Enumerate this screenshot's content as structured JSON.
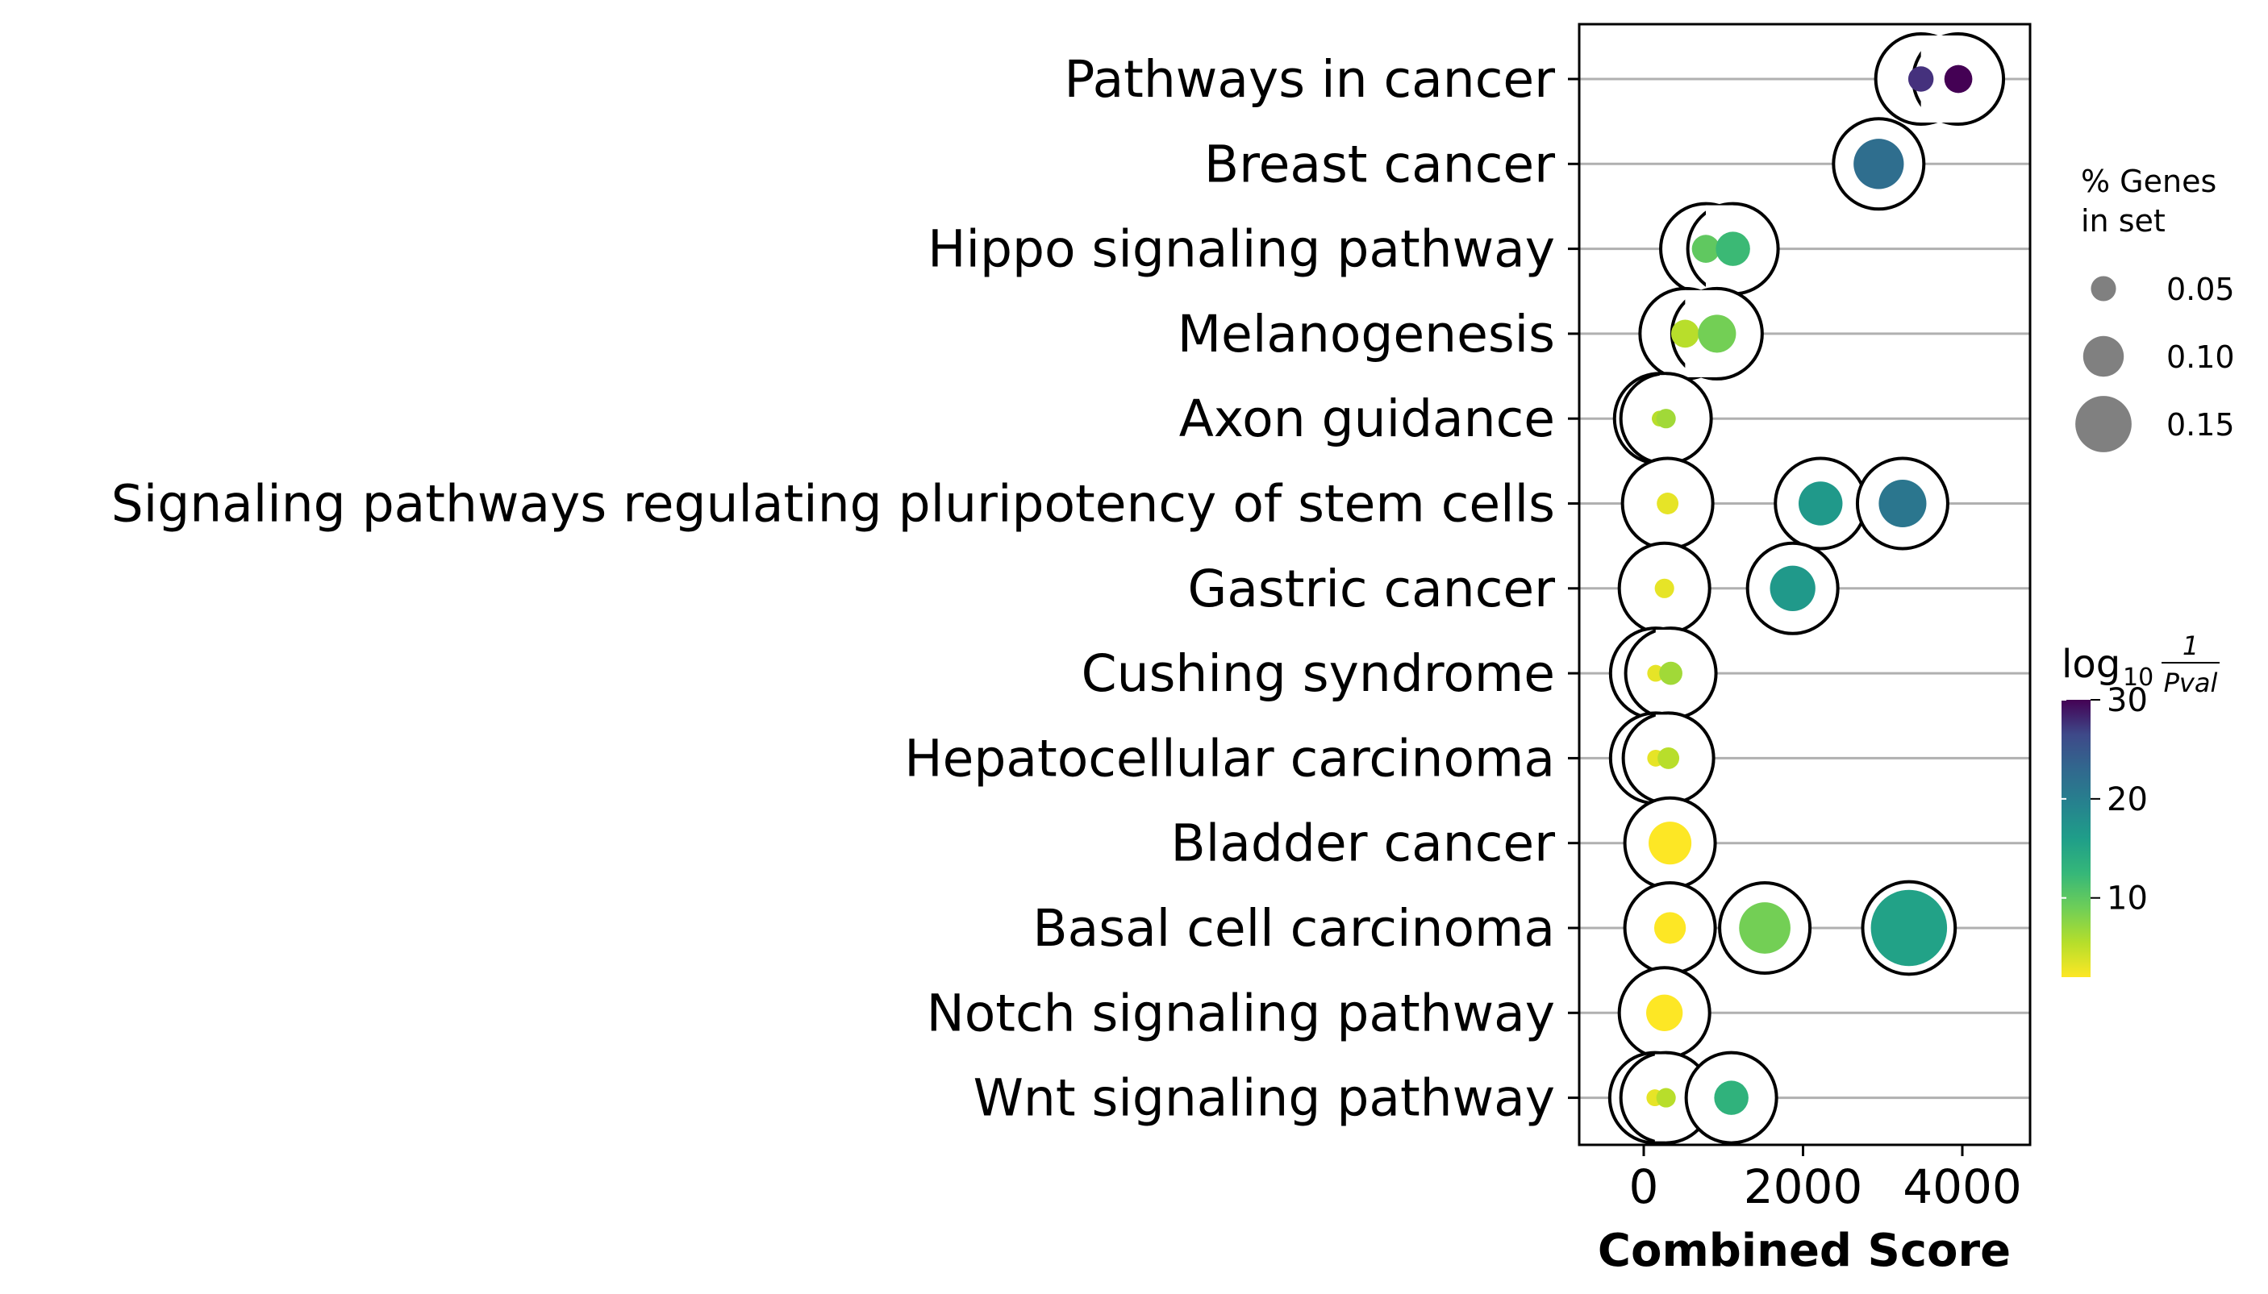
{
  "chart_data": {
    "type": "scatter",
    "xlabel": "Combined Score",
    "xlim": [
      -800,
      4900
    ],
    "xticks": [
      0,
      2000,
      4000
    ],
    "xtick_labels": [
      "0",
      "2000",
      "4000"
    ],
    "grid": "horizontal",
    "categories": [
      "Pathways in cancer",
      "Breast cancer",
      "Hippo signaling pathway",
      "Melanogenesis",
      "Axon guidance",
      "Signaling pathways regulating pluripotency of stem cells",
      "Gastric cancer",
      "Cushing syndrome",
      "Hepatocellular carcinoma",
      "Bladder cancer",
      "Basal cell carcinoma",
      "Notch signaling pathway",
      "Wnt signaling pathway"
    ],
    "points": [
      {
        "category": "Pathways in cancer",
        "x": 3480,
        "pct": 0.038,
        "logp": 26
      },
      {
        "category": "Pathways in cancer",
        "x": 3950,
        "pct": 0.045,
        "logp": 30
      },
      {
        "category": "Breast cancer",
        "x": 2950,
        "pct": 0.105,
        "logp": 20
      },
      {
        "category": "Hippo signaling pathway",
        "x": 780,
        "pct": 0.045,
        "logp": 9
      },
      {
        "category": "Hippo signaling pathway",
        "x": 1120,
        "pct": 0.062,
        "logp": 11
      },
      {
        "category": "Melanogenesis",
        "x": 520,
        "pct": 0.045,
        "logp": 5
      },
      {
        "category": "Melanogenesis",
        "x": 920,
        "pct": 0.072,
        "logp": 8
      },
      {
        "category": "Axon guidance",
        "x": 200,
        "pct": 0.012,
        "logp": 5
      },
      {
        "category": "Axon guidance",
        "x": 280,
        "pct": 0.022,
        "logp": 6
      },
      {
        "category": "Signaling pathways regulating pluripotency of stem cells",
        "x": 300,
        "pct": 0.028,
        "logp": 3
      },
      {
        "category": "Signaling pathways regulating pluripotency of stem cells",
        "x": 2220,
        "pct": 0.088,
        "logp": 15
      },
      {
        "category": "Signaling pathways regulating pluripotency of stem cells",
        "x": 3250,
        "pct": 0.098,
        "logp": 19
      },
      {
        "category": "Gastric cancer",
        "x": 260,
        "pct": 0.022,
        "logp": 3
      },
      {
        "category": "Gastric cancer",
        "x": 1870,
        "pct": 0.092,
        "logp": 15
      },
      {
        "category": "Cushing syndrome",
        "x": 150,
        "pct": 0.015,
        "logp": 3
      },
      {
        "category": "Cushing syndrome",
        "x": 340,
        "pct": 0.032,
        "logp": 6
      },
      {
        "category": "Hepatocellular carcinoma",
        "x": 150,
        "pct": 0.015,
        "logp": 3
      },
      {
        "category": "Hepatocellular carcinoma",
        "x": 310,
        "pct": 0.028,
        "logp": 5
      },
      {
        "category": "Bladder cancer",
        "x": 330,
        "pct": 0.085,
        "logp": 2
      },
      {
        "category": "Basal cell carcinoma",
        "x": 330,
        "pct": 0.055,
        "logp": 2
      },
      {
        "category": "Basal cell carcinoma",
        "x": 1520,
        "pct": 0.108,
        "logp": 8
      },
      {
        "category": "Basal cell carcinoma",
        "x": 3330,
        "pct": 0.175,
        "logp": 14
      },
      {
        "category": "Notch signaling pathway",
        "x": 260,
        "pct": 0.068,
        "logp": 2
      },
      {
        "category": "Wnt signaling pathway",
        "x": 140,
        "pct": 0.015,
        "logp": 3
      },
      {
        "category": "Wnt signaling pathway",
        "x": 280,
        "pct": 0.022,
        "logp": 5
      },
      {
        "category": "Wnt signaling pathway",
        "x": 1100,
        "pct": 0.062,
        "logp": 12
      }
    ],
    "size_legend": {
      "title_lines": [
        "% Genes",
        "in set"
      ],
      "values": [
        0.05,
        0.1,
        0.15
      ],
      "labels": [
        "0.05",
        "0.10",
        "0.15"
      ],
      "color": "#808080"
    },
    "colorbar": {
      "title_main": "log",
      "title_sub": "10",
      "title_frac_num": "1",
      "title_frac_den": "Pval",
      "range": [
        2,
        30
      ],
      "ticks": [
        10,
        20,
        30
      ],
      "tick_labels": [
        "10",
        "20",
        "30"
      ],
      "colormap": "viridis_r"
    }
  }
}
